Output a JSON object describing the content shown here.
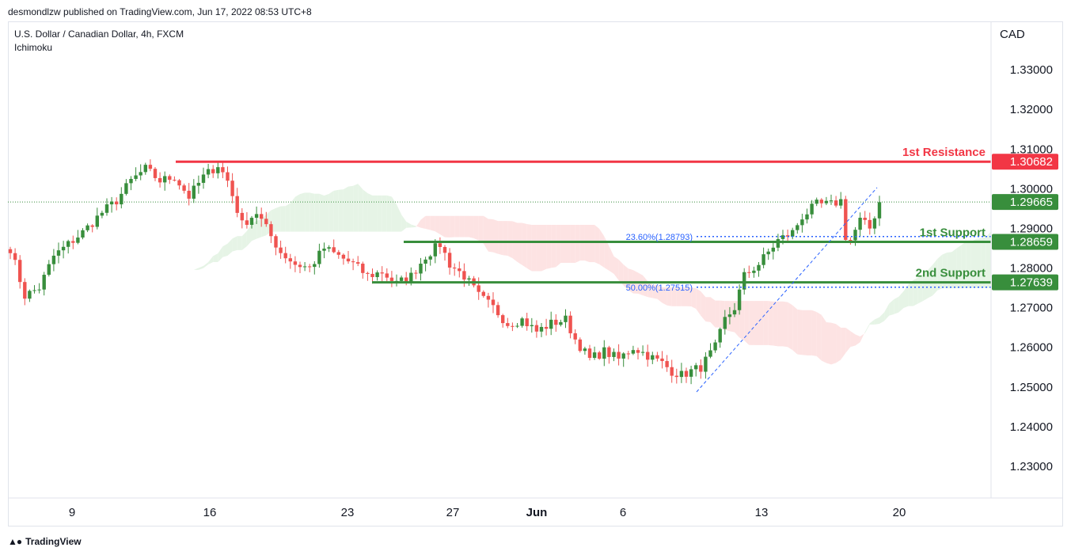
{
  "header": {
    "publisher_text": "desmondlzw published on TradingView.com, Jun 17, 2022 08:53 UTC+8"
  },
  "footer": {
    "brand": "TradingView",
    "logo_icon": "tradingview-logo-icon"
  },
  "chart_data": {
    "type": "candlestick",
    "title": "U.S. Dollar / Canadian Dollar, 4h, FXCM",
    "indicator": "Ichimoku",
    "currency": "CAD",
    "ylim": [
      1.222,
      1.342
    ],
    "y_ticks": [
      "1.33000",
      "1.32000",
      "1.31000",
      "1.30000",
      "1.29000",
      "1.28000",
      "1.27000",
      "1.26000",
      "1.25000",
      "1.24000",
      "1.23000"
    ],
    "x_ticks": [
      "9",
      "16",
      "23",
      "27",
      "Jun",
      "6",
      "13",
      "20"
    ],
    "last_price": "1.29665",
    "levels": [
      {
        "name": "1st Resistance",
        "price": "1.30682",
        "value": 1.30682,
        "color": "#f23645"
      },
      {
        "name": "1st Support",
        "price": "1.28659",
        "value": 1.28659,
        "color": "#388e3c"
      },
      {
        "name": "2nd Support",
        "price": "1.27639",
        "value": 1.27639,
        "color": "#388e3c"
      }
    ],
    "fibonacci": [
      {
        "label": "23.60%(1.28793)",
        "value": 1.28793
      },
      {
        "label": "50.00%(1.27515)",
        "value": 1.27515
      }
    ],
    "colors": {
      "up": "#388e3c",
      "down": "#ef5350",
      "fib": "#2962ff",
      "cloud_bull": "#e6f4e6",
      "cloud_bear": "#fde3e3"
    },
    "close_path": [
      [
        0,
        1.285
      ],
      [
        3,
        1.273
      ],
      [
        6,
        1.275
      ],
      [
        9,
        1.283
      ],
      [
        12,
        1.286
      ],
      [
        15,
        1.289
      ],
      [
        19,
        1.294
      ],
      [
        22,
        1.297
      ],
      [
        25,
        1.302
      ],
      [
        28,
        1.305
      ],
      [
        31,
        1.302
      ],
      [
        34,
        1.303
      ],
      [
        37,
        1.298
      ],
      [
        40,
        1.303
      ],
      [
        43,
        1.306
      ],
      [
        45,
        1.302
      ],
      [
        48,
        1.291
      ],
      [
        51,
        1.294
      ],
      [
        53,
        1.29
      ],
      [
        56,
        1.284
      ],
      [
        59,
        1.281
      ],
      [
        62,
        1.28
      ],
      [
        65,
        1.285
      ],
      [
        68,
        1.283
      ],
      [
        71,
        1.281
      ],
      [
        74,
        1.278
      ],
      [
        77,
        1.279
      ],
      [
        80,
        1.276
      ],
      [
        83,
        1.278
      ],
      [
        86,
        1.283
      ],
      [
        89,
        1.286
      ],
      [
        91,
        1.281
      ],
      [
        94,
        1.278
      ],
      [
        97,
        1.273
      ],
      [
        100,
        1.27
      ],
      [
        103,
        1.266
      ],
      [
        106,
        1.267
      ],
      [
        109,
        1.264
      ],
      [
        112,
        1.266
      ],
      [
        115,
        1.267
      ],
      [
        117,
        1.262
      ],
      [
        120,
        1.257
      ],
      [
        123,
        1.259
      ],
      [
        126,
        1.257
      ],
      [
        129,
        1.26
      ],
      [
        132,
        1.258
      ],
      [
        135,
        1.256
      ],
      [
        137,
        1.254
      ],
      [
        139,
        1.253
      ],
      [
        141,
        1.254
      ],
      [
        143,
        1.255
      ],
      [
        146,
        1.26
      ],
      [
        148,
        1.267
      ],
      [
        150,
        1.27
      ],
      [
        152,
        1.278
      ],
      [
        155,
        1.281
      ],
      [
        157,
        1.284
      ],
      [
        159,
        1.287
      ],
      [
        162,
        1.289
      ],
      [
        164,
        1.293
      ],
      [
        167,
        1.296
      ],
      [
        170,
        1.296
      ],
      [
        172,
        1.297
      ],
      [
        173,
        1.288
      ],
      [
        174,
        1.287
      ],
      [
        176,
        1.292
      ],
      [
        178,
        1.29
      ],
      [
        180,
        1.2966
      ]
    ]
  }
}
